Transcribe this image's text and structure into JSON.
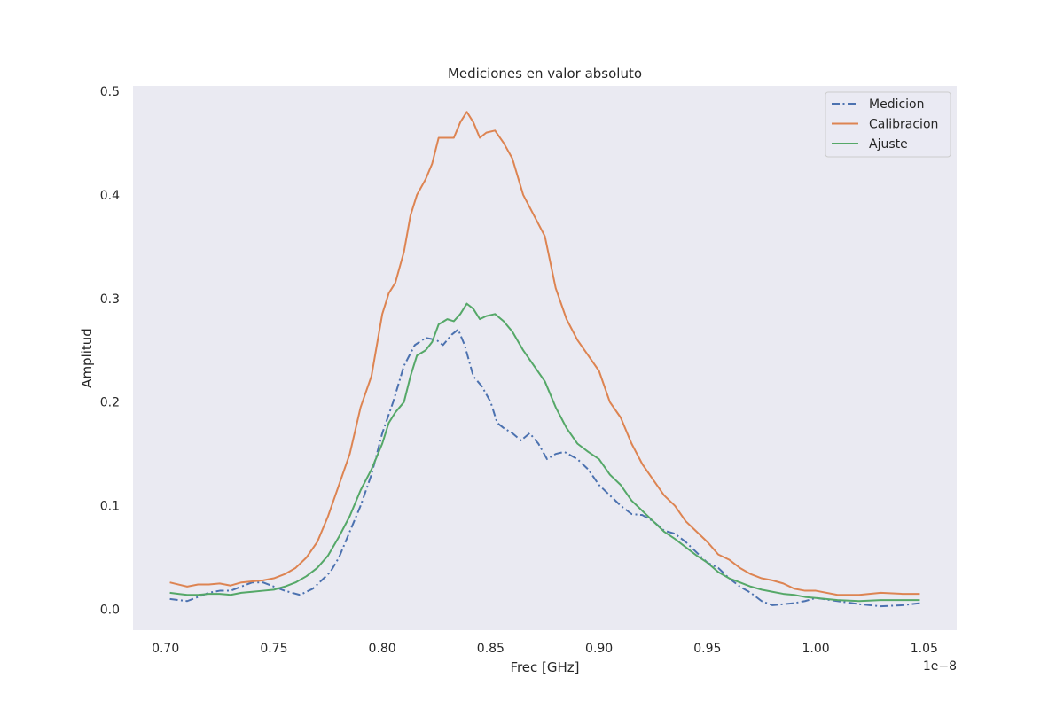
{
  "chart_data": {
    "type": "line",
    "title": "Mediciones en valor absoluto",
    "xlabel": "Frec [GHz]",
    "ylabel": "Amplitud",
    "x_offset_text": "1e−8",
    "xlim": [
      0.685,
      1.065
    ],
    "ylim": [
      -0.02,
      0.505
    ],
    "xticks": [
      0.7,
      0.75,
      0.8,
      0.85,
      0.9,
      0.95,
      1.0,
      1.05
    ],
    "xtick_labels": [
      "0.70",
      "0.75",
      "0.80",
      "0.85",
      "0.90",
      "0.95",
      "1.00",
      "1.05"
    ],
    "yticks": [
      0.0,
      0.1,
      0.2,
      0.3,
      0.4,
      0.5
    ],
    "ytick_labels": [
      "0.0",
      "0.1",
      "0.2",
      "0.3",
      "0.4",
      "0.5"
    ],
    "grid": false,
    "legend_position": "top-right",
    "background_color": "#eaeaf2",
    "series": [
      {
        "name": "Medicion",
        "color": "#4c72b0",
        "line_style": "dashdot",
        "x": [
          0.702,
          0.71,
          0.715,
          0.72,
          0.725,
          0.73,
          0.735,
          0.74,
          0.745,
          0.75,
          0.755,
          0.762,
          0.768,
          0.772,
          0.776,
          0.78,
          0.785,
          0.79,
          0.795,
          0.8,
          0.805,
          0.81,
          0.815,
          0.82,
          0.825,
          0.828,
          0.832,
          0.835,
          0.838,
          0.842,
          0.846,
          0.85,
          0.853,
          0.856,
          0.86,
          0.864,
          0.868,
          0.872,
          0.876,
          0.88,
          0.884,
          0.89,
          0.895,
          0.9,
          0.905,
          0.91,
          0.915,
          0.92,
          0.925,
          0.93,
          0.935,
          0.94,
          0.945,
          0.95,
          0.955,
          0.96,
          0.965,
          0.97,
          0.975,
          0.98,
          0.985,
          0.99,
          0.995,
          1.0,
          1.01,
          1.02,
          1.03,
          1.04,
          1.048
        ],
        "y": [
          0.01,
          0.008,
          0.012,
          0.016,
          0.018,
          0.018,
          0.022,
          0.026,
          0.026,
          0.022,
          0.018,
          0.014,
          0.02,
          0.028,
          0.036,
          0.05,
          0.075,
          0.1,
          0.13,
          0.17,
          0.2,
          0.235,
          0.255,
          0.262,
          0.26,
          0.255,
          0.265,
          0.27,
          0.255,
          0.225,
          0.215,
          0.2,
          0.18,
          0.175,
          0.17,
          0.163,
          0.17,
          0.16,
          0.145,
          0.15,
          0.152,
          0.145,
          0.135,
          0.12,
          0.11,
          0.1,
          0.092,
          0.091,
          0.085,
          0.076,
          0.073,
          0.065,
          0.055,
          0.045,
          0.04,
          0.03,
          0.022,
          0.016,
          0.008,
          0.004,
          0.005,
          0.006,
          0.008,
          0.011,
          0.008,
          0.005,
          0.003,
          0.004,
          0.006
        ]
      },
      {
        "name": "Calibracion",
        "color": "#dd8452",
        "line_style": "solid",
        "x": [
          0.702,
          0.706,
          0.71,
          0.715,
          0.72,
          0.725,
          0.73,
          0.735,
          0.74,
          0.745,
          0.75,
          0.755,
          0.76,
          0.765,
          0.77,
          0.775,
          0.78,
          0.785,
          0.79,
          0.795,
          0.8,
          0.803,
          0.806,
          0.81,
          0.813,
          0.816,
          0.82,
          0.823,
          0.826,
          0.83,
          0.833,
          0.836,
          0.839,
          0.842,
          0.845,
          0.848,
          0.852,
          0.856,
          0.86,
          0.865,
          0.87,
          0.875,
          0.88,
          0.885,
          0.89,
          0.895,
          0.9,
          0.905,
          0.91,
          0.915,
          0.92,
          0.925,
          0.93,
          0.935,
          0.94,
          0.945,
          0.95,
          0.955,
          0.96,
          0.965,
          0.97,
          0.975,
          0.98,
          0.985,
          0.99,
          0.995,
          1.0,
          1.01,
          1.02,
          1.03,
          1.04,
          1.048
        ],
        "y": [
          0.026,
          0.024,
          0.022,
          0.024,
          0.024,
          0.025,
          0.023,
          0.026,
          0.027,
          0.028,
          0.03,
          0.034,
          0.04,
          0.05,
          0.065,
          0.09,
          0.12,
          0.15,
          0.195,
          0.225,
          0.285,
          0.305,
          0.315,
          0.345,
          0.38,
          0.4,
          0.415,
          0.43,
          0.455,
          0.455,
          0.455,
          0.47,
          0.48,
          0.47,
          0.455,
          0.46,
          0.462,
          0.45,
          0.435,
          0.4,
          0.38,
          0.36,
          0.31,
          0.28,
          0.26,
          0.245,
          0.23,
          0.2,
          0.185,
          0.16,
          0.14,
          0.125,
          0.11,
          0.1,
          0.085,
          0.075,
          0.065,
          0.053,
          0.048,
          0.04,
          0.034,
          0.03,
          0.028,
          0.025,
          0.02,
          0.018,
          0.018,
          0.014,
          0.014,
          0.016,
          0.015,
          0.015
        ]
      },
      {
        "name": "Ajuste",
        "color": "#55a868",
        "line_style": "solid",
        "x": [
          0.702,
          0.706,
          0.71,
          0.715,
          0.72,
          0.725,
          0.73,
          0.735,
          0.74,
          0.745,
          0.75,
          0.755,
          0.76,
          0.765,
          0.77,
          0.775,
          0.78,
          0.785,
          0.79,
          0.795,
          0.8,
          0.803,
          0.806,
          0.81,
          0.813,
          0.816,
          0.82,
          0.823,
          0.826,
          0.83,
          0.833,
          0.836,
          0.839,
          0.842,
          0.845,
          0.848,
          0.852,
          0.856,
          0.86,
          0.865,
          0.87,
          0.875,
          0.88,
          0.885,
          0.89,
          0.895,
          0.9,
          0.905,
          0.91,
          0.915,
          0.92,
          0.925,
          0.93,
          0.935,
          0.94,
          0.945,
          0.95,
          0.955,
          0.96,
          0.965,
          0.97,
          0.975,
          0.98,
          0.985,
          0.99,
          0.995,
          1.0,
          1.01,
          1.02,
          1.03,
          1.04,
          1.048
        ],
        "y": [
          0.016,
          0.015,
          0.014,
          0.014,
          0.015,
          0.015,
          0.014,
          0.016,
          0.017,
          0.018,
          0.019,
          0.022,
          0.026,
          0.032,
          0.04,
          0.052,
          0.07,
          0.09,
          0.115,
          0.135,
          0.16,
          0.18,
          0.19,
          0.2,
          0.225,
          0.245,
          0.25,
          0.258,
          0.275,
          0.28,
          0.278,
          0.285,
          0.295,
          0.29,
          0.28,
          0.283,
          0.285,
          0.278,
          0.268,
          0.25,
          0.235,
          0.22,
          0.195,
          0.175,
          0.16,
          0.152,
          0.145,
          0.13,
          0.12,
          0.105,
          0.095,
          0.085,
          0.075,
          0.068,
          0.06,
          0.052,
          0.045,
          0.036,
          0.03,
          0.026,
          0.022,
          0.019,
          0.017,
          0.015,
          0.014,
          0.012,
          0.011,
          0.009,
          0.008,
          0.009,
          0.009,
          0.009
        ]
      }
    ]
  }
}
